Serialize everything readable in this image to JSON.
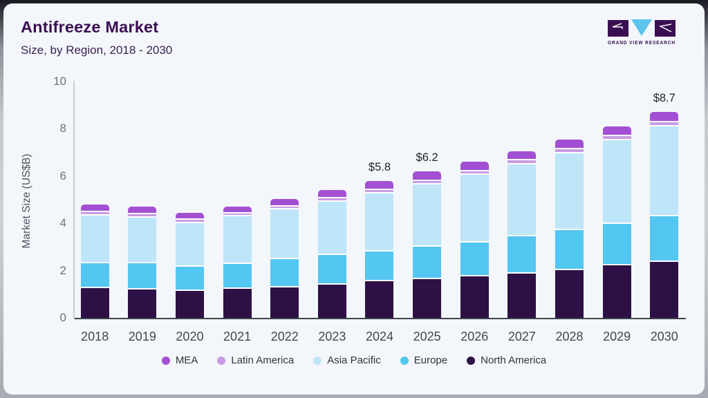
{
  "header": {
    "title": "Antifreeze Market",
    "subtitle": "Size, by Region, 2018 - 2030",
    "logo_text": "GRAND VIEW RESEARCH"
  },
  "colors": {
    "card_background": "#f3f6fa",
    "title_text": "#3a0e52",
    "logo_purple": "#3a0f52",
    "logo_blue": "#5bc4ee"
  },
  "chart_data": {
    "type": "bar",
    "stacked": true,
    "title": "Antifreeze Market",
    "subtitle": "Size, by Region, 2018 - 2030",
    "xlabel": "",
    "ylabel": "Market Size (US$B)",
    "ylim": [
      0,
      10
    ],
    "yticks": [
      0,
      2,
      4,
      6,
      8,
      10
    ],
    "grid": false,
    "legend_position": "bottom",
    "categories": [
      "2018",
      "2019",
      "2020",
      "2021",
      "2022",
      "2023",
      "2024",
      "2025",
      "2026",
      "2027",
      "2028",
      "2029",
      "2030"
    ],
    "series": [
      {
        "name": "North America",
        "color": "#2d1045",
        "values": [
          1.25,
          1.2,
          1.15,
          1.22,
          1.3,
          1.41,
          1.54,
          1.64,
          1.75,
          1.87,
          2.02,
          2.21,
          2.36
        ]
      },
      {
        "name": "Europe",
        "color": "#53c6f1",
        "values": [
          1.06,
          1.11,
          1.01,
          1.07,
          1.19,
          1.24,
          1.27,
          1.38,
          1.45,
          1.59,
          1.7,
          1.77,
          1.93
        ]
      },
      {
        "name": "Asia Pacific",
        "color": "#bee5f8",
        "values": [
          2.01,
          1.93,
          1.84,
          2.0,
          2.09,
          2.27,
          2.45,
          2.63,
          2.85,
          3.04,
          3.25,
          3.53,
          3.82
        ]
      },
      {
        "name": "Latin America",
        "color": "#c89be4",
        "values": [
          0.16,
          0.14,
          0.15,
          0.14,
          0.14,
          0.15,
          0.16,
          0.15,
          0.16,
          0.17,
          0.17,
          0.17,
          0.17
        ]
      },
      {
        "name": "MEA",
        "color": "#a34fd3",
        "values": [
          0.32,
          0.32,
          0.3,
          0.29,
          0.31,
          0.33,
          0.38,
          0.4,
          0.39,
          0.38,
          0.41,
          0.42,
          0.42
        ]
      }
    ],
    "totals": [
      4.8,
      4.7,
      4.45,
      4.72,
      5.03,
      5.4,
      5.8,
      6.2,
      6.6,
      7.05,
      7.55,
      8.1,
      8.7
    ],
    "value_labels": {
      "2024": "$5.8",
      "2025": "$6.2",
      "2030": "$8.7"
    },
    "legend_order": [
      "MEA",
      "Latin America",
      "Asia Pacific",
      "Europe",
      "North America"
    ]
  }
}
